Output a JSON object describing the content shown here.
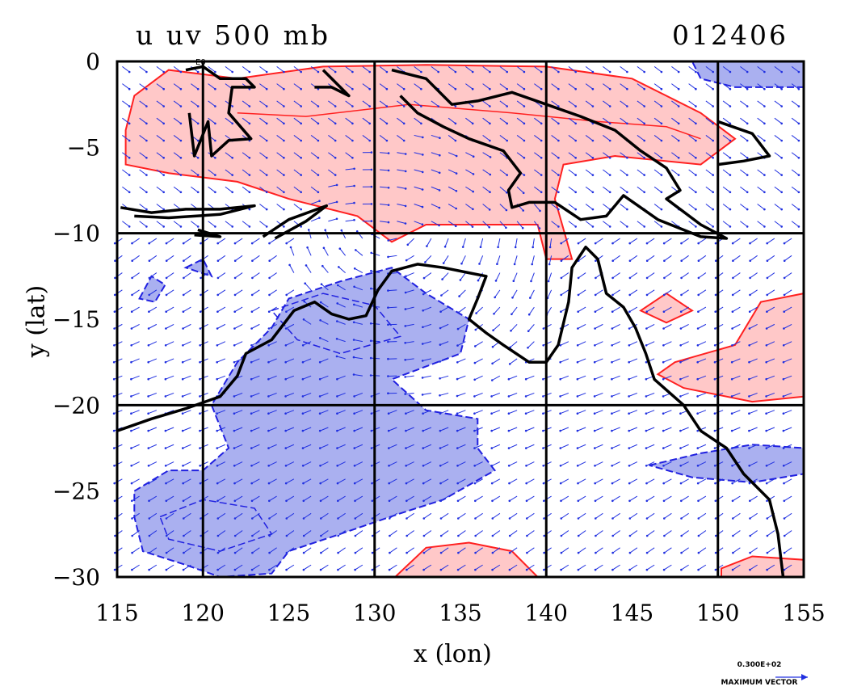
{
  "title_left": "u uv 500 mb",
  "title_right": "012406",
  "map_marker": "E0",
  "reference_vector": {
    "value": "0.300E+02",
    "label": "MAXIMUM VECTOR"
  },
  "chart_data": {
    "type": "map",
    "xlabel": "x (lon)",
    "ylabel": "y (lat)",
    "xlim": [
      115,
      155
    ],
    "ylim": [
      -30,
      0
    ],
    "x_ticks": [
      115,
      120,
      125,
      130,
      135,
      140,
      145,
      150,
      155
    ],
    "y_ticks": [
      0,
      -5,
      -10,
      -15,
      -20,
      -25,
      -30
    ],
    "gridlines_x": [
      120,
      130,
      140,
      150
    ],
    "gridlines_y": [
      -10,
      -20
    ],
    "colors": {
      "positive_fill": "#ffc8c8",
      "positive_contour": "#ff2020",
      "negative_fill": "#aab0f0",
      "negative_contour": "#2020e0",
      "vectors": "#2030e0",
      "coast": "#000000"
    }
  }
}
